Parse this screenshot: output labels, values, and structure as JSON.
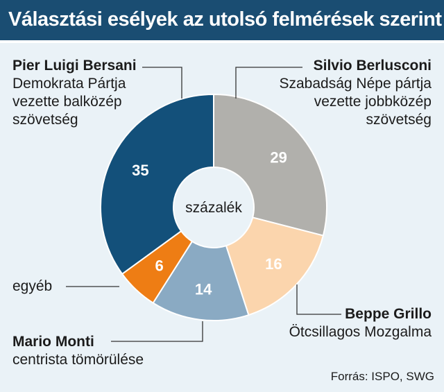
{
  "title": "Választási esélyek az utolsó felmérések szerint",
  "source": "Forrás: ISPO, SWG",
  "center_label": "százalék",
  "colors": {
    "header": "#1a4d72",
    "background": "#eaf2f7",
    "leader_line": "#333333"
  },
  "chart_data": {
    "type": "pie",
    "donut": true,
    "unit": "százalék",
    "slices": [
      {
        "label": "Silvio Berlusconi",
        "desc_lines": [
          "Szabadság Népe pártja",
          "vezette jobbközép",
          "szövetség"
        ],
        "value": 29,
        "color": "#b1b0ac",
        "value_color": "#ffffff"
      },
      {
        "label": "Beppe Grillo",
        "desc_lines": [
          "Ötcsillagos Mozgalma"
        ],
        "value": 16,
        "color": "#fbd5ad",
        "value_color": "#ffffff"
      },
      {
        "label": "Mario Monti",
        "desc_lines": [
          "centrista tömörülése"
        ],
        "value": 14,
        "color": "#8aaac3",
        "value_color": "#ffffff"
      },
      {
        "label": "egyéb",
        "desc_lines": [],
        "value": 6,
        "color": "#ee7d14",
        "value_color": "#ffffff"
      },
      {
        "label": "Pier Luigi Bersani",
        "desc_lines": [
          "Demokrata Pártja",
          "vezette balközép",
          "szövetség"
        ],
        "value": 35,
        "color": "#13507a",
        "value_color": "#ffffff"
      }
    ]
  }
}
